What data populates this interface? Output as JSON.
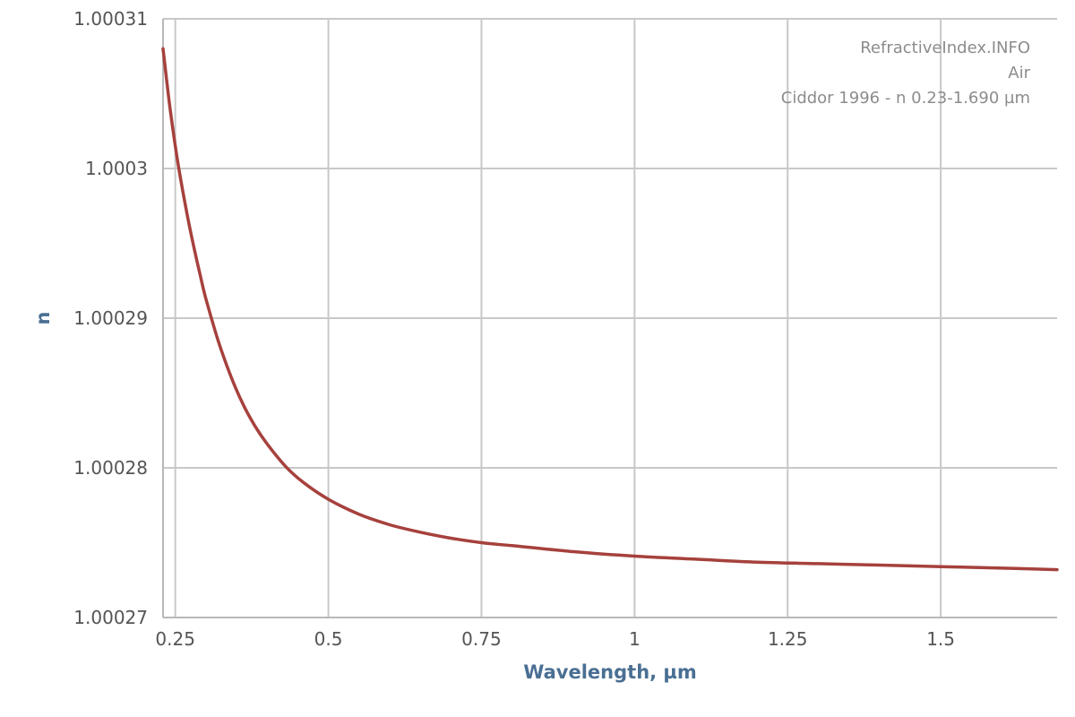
{
  "colors": {
    "series": "#a6413d",
    "grid": "#c8c8c8",
    "axis_title": "#4a6f93",
    "tick_text": "#555555",
    "annotation_text": "#8c8c8c"
  },
  "chart_data": {
    "type": "line",
    "title": "",
    "xlabel": "Wavelength, µm",
    "ylabel": "n",
    "xlim": [
      0.23,
      1.69
    ],
    "ylim": [
      1.00027,
      1.00031
    ],
    "grid": true,
    "x_ticks": [
      0.25,
      0.5,
      0.75,
      1,
      1.25,
      1.5
    ],
    "x_tick_labels": [
      "0.25",
      "0.5",
      "0.75",
      "1",
      "1.25",
      "1.5"
    ],
    "y_ticks": [
      1.00027,
      1.00028,
      1.00029,
      1.0003,
      1.00031
    ],
    "y_tick_labels": [
      "1.00027",
      "1.00028",
      "1.00029",
      "1.0003",
      "1.00031"
    ],
    "annotations": [
      "RefractiveIndex.INFO",
      "Air",
      "Ciddor 1996 - n 0.23-1.690 µm"
    ],
    "series": [
      {
        "x": [
          0.23,
          0.24,
          0.25,
          0.26,
          0.27,
          0.28,
          0.29,
          0.3,
          0.32,
          0.34,
          0.36,
          0.38,
          0.4,
          0.43,
          0.46,
          0.5,
          0.55,
          0.6,
          0.65,
          0.7,
          0.75,
          0.8,
          0.9,
          1.0,
          1.1,
          1.2,
          1.3,
          1.4,
          1.5,
          1.6,
          1.69
        ],
        "y": [
          1.000308,
          1.0003045,
          1.0003015,
          1.000299,
          1.0002968,
          1.0002948,
          1.000293,
          1.0002913,
          1.0002885,
          1.0002862,
          1.0002843,
          1.0002828,
          1.0002816,
          1.0002801,
          1.000279,
          1.0002779,
          1.0002769,
          1.0002762,
          1.0002757,
          1.0002753,
          1.000275,
          1.0002748,
          1.0002744,
          1.0002741,
          1.0002739,
          1.0002737,
          1.0002736,
          1.0002735,
          1.0002734,
          1.0002733,
          1.0002732
        ]
      }
    ]
  }
}
